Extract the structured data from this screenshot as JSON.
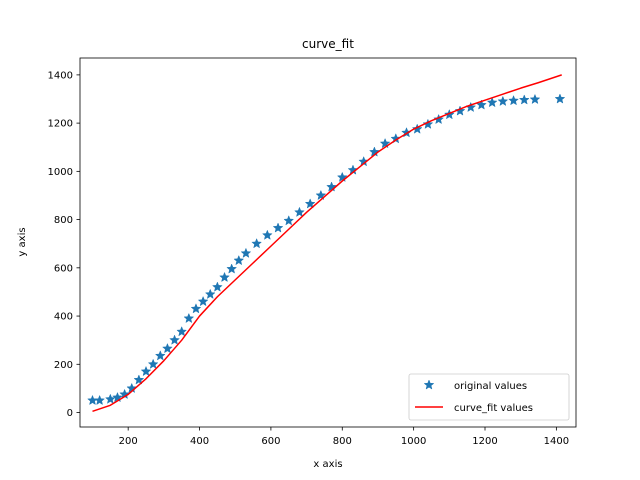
{
  "chart_data": {
    "type": "line",
    "title": "curve_fit",
    "xlabel": "x axis",
    "ylabel": "y axis",
    "xlim": [
      65,
      1455
    ],
    "ylim": [
      -60,
      1470
    ],
    "xticks": [
      200,
      400,
      600,
      800,
      1000,
      1200,
      1400
    ],
    "yticks": [
      0,
      200,
      400,
      600,
      800,
      1000,
      1200,
      1400
    ],
    "grid": false,
    "legend": {
      "location": "lower-right",
      "entries": [
        "original values",
        "curve_fit values"
      ]
    },
    "series": [
      {
        "name": "original values",
        "style": "star markers",
        "color": "#1f77b4",
        "x": [
          100,
          120,
          150,
          170,
          190,
          210,
          230,
          250,
          270,
          290,
          310,
          330,
          350,
          370,
          390,
          410,
          430,
          450,
          470,
          490,
          510,
          530,
          560,
          590,
          620,
          650,
          680,
          710,
          740,
          770,
          800,
          830,
          860,
          890,
          920,
          950,
          980,
          1010,
          1040,
          1070,
          1100,
          1130,
          1160,
          1190,
          1220,
          1250,
          1280,
          1310,
          1340,
          1410
        ],
        "y": [
          50,
          50,
          55,
          62,
          75,
          100,
          135,
          170,
          200,
          235,
          265,
          300,
          335,
          390,
          430,
          460,
          490,
          520,
          560,
          595,
          630,
          660,
          700,
          735,
          765,
          795,
          830,
          865,
          900,
          935,
          975,
          1005,
          1040,
          1080,
          1115,
          1135,
          1160,
          1175,
          1195,
          1215,
          1235,
          1250,
          1265,
          1275,
          1285,
          1290,
          1293,
          1296,
          1298,
          1300
        ]
      },
      {
        "name": "curve_fit values",
        "style": "line",
        "color": "#ff0000",
        "x": [
          100,
          150,
          200,
          250,
          300,
          350,
          400,
          450,
          500,
          550,
          600,
          650,
          700,
          750,
          800,
          850,
          900,
          950,
          1000,
          1050,
          1100,
          1150,
          1200,
          1250,
          1300,
          1350,
          1415
        ],
        "y": [
          5,
          30,
          75,
          140,
          215,
          300,
          400,
          480,
          550,
          620,
          690,
          760,
          830,
          895,
          960,
          1020,
          1080,
          1130,
          1175,
          1210,
          1240,
          1270,
          1295,
          1320,
          1345,
          1368,
          1400
        ]
      }
    ]
  }
}
